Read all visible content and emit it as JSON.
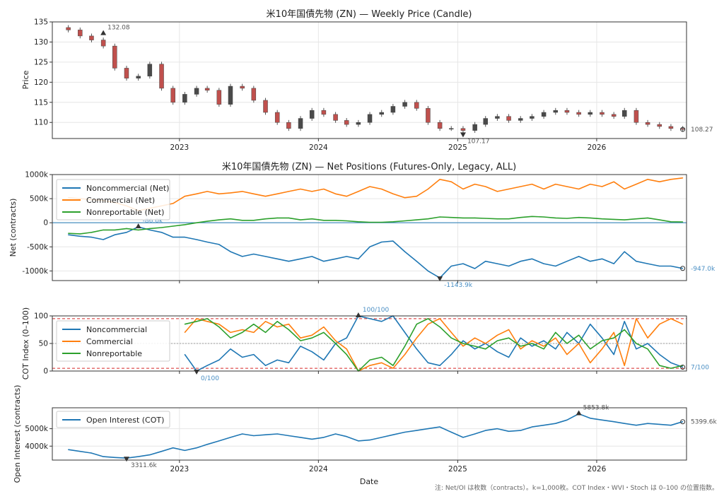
{
  "figure": {
    "footnote": "注: Net/OI は枚数（contracts）。k=1,000枚。COT Index・WVI・Stoch は 0–100 の位置指数。",
    "xlabel": "Date"
  },
  "chart_data": [
    {
      "type": "candlestick",
      "title": "米10年国債先物 (ZN) — Weekly Price (Candle)",
      "ylabel": "Price",
      "ylim": [
        106,
        135
      ],
      "yticks": [
        110,
        115,
        120,
        125,
        130,
        135
      ],
      "xticks": [
        "2023",
        "2024",
        "2025",
        "2026"
      ],
      "grid": true,
      "x": [
        "2022-03",
        "2022-04",
        "2022-05",
        "2022-06",
        "2022-07",
        "2022-08",
        "2022-09",
        "2022-10",
        "2022-11",
        "2022-12",
        "2023-01",
        "2023-02",
        "2023-03",
        "2023-04",
        "2023-05",
        "2023-06",
        "2023-07",
        "2023-08",
        "2023-09",
        "2023-10",
        "2023-11",
        "2023-12",
        "2024-01",
        "2024-02",
        "2024-03",
        "2024-04",
        "2024-05",
        "2024-06",
        "2024-07",
        "2024-08",
        "2024-09",
        "2024-10",
        "2024-11",
        "2024-12",
        "2025-01",
        "2025-02",
        "2025-03",
        "2025-04",
        "2025-05",
        "2025-06",
        "2025-07",
        "2025-08",
        "2025-09",
        "2025-10",
        "2025-11",
        "2025-12",
        "2026-01",
        "2026-02",
        "2026-03",
        "2026-04",
        "2026-05",
        "2026-06",
        "2026-07",
        "2026-08"
      ],
      "close": [
        133.0,
        131.5,
        130.5,
        129.0,
        123.5,
        121.0,
        121.5,
        124.5,
        118.5,
        115.0,
        117.0,
        118.5,
        118.0,
        114.5,
        119.0,
        118.5,
        115.5,
        112.5,
        110.0,
        108.5,
        111.0,
        113.0,
        112.0,
        110.5,
        109.5,
        110.0,
        112.0,
        112.5,
        114.0,
        115.0,
        113.5,
        110.0,
        108.5,
        108.5,
        108.0,
        109.5,
        111.0,
        111.5,
        110.5,
        111.0,
        111.5,
        112.5,
        113.0,
        112.5,
        112.0,
        112.5,
        112.0,
        111.5,
        113.0,
        110.0,
        109.5,
        109.0,
        108.5,
        108.27
      ],
      "annotations": [
        {
          "label": "132.08",
          "x": "2022-06",
          "y": 132.08,
          "kind": "max"
        },
        {
          "label": "107.17",
          "x": "2025-01",
          "y": 107.17,
          "kind": "min"
        },
        {
          "label": "108.27",
          "x": "2026-08",
          "y": 108.27,
          "kind": "last"
        }
      ]
    },
    {
      "type": "line",
      "title": "米10年国債先物 (ZN) — Net Positions (Futures-Only, Legacy, ALL)",
      "ylabel": "Net (contracts)",
      "ylim": [
        -1200,
        1000
      ],
      "yticks": [
        -1000,
        -500,
        0,
        500,
        1000
      ],
      "ytick_labels": [
        "-1000k",
        "-500k",
        "0",
        "500k",
        "1000k"
      ],
      "unit": "k",
      "grid": true,
      "legend": "top-left",
      "x": [
        "2022-03",
        "2022-04",
        "2022-05",
        "2022-06",
        "2022-07",
        "2022-08",
        "2022-09",
        "2022-10",
        "2022-11",
        "2022-12",
        "2023-01",
        "2023-02",
        "2023-03",
        "2023-04",
        "2023-05",
        "2023-06",
        "2023-07",
        "2023-08",
        "2023-09",
        "2023-10",
        "2023-11",
        "2023-12",
        "2024-01",
        "2024-02",
        "2024-03",
        "2024-04",
        "2024-05",
        "2024-06",
        "2024-07",
        "2024-08",
        "2024-09",
        "2024-10",
        "2024-11",
        "2024-12",
        "2025-01",
        "2025-02",
        "2025-03",
        "2025-04",
        "2025-05",
        "2025-06",
        "2025-07",
        "2025-08",
        "2025-09",
        "2025-10",
        "2025-11",
        "2025-12",
        "2026-01",
        "2026-02",
        "2026-03",
        "2026-04",
        "2026-05",
        "2026-06",
        "2026-07",
        "2026-08"
      ],
      "series": [
        {
          "name": "Noncommercial (Net)",
          "color": "#1f77b4",
          "values": [
            -250,
            -280,
            -300,
            -350,
            -250,
            -200,
            -86,
            -150,
            -200,
            -300,
            -300,
            -350,
            -400,
            -450,
            -600,
            -700,
            -650,
            -700,
            -750,
            -800,
            -750,
            -700,
            -800,
            -750,
            -700,
            -750,
            -500,
            -400,
            -380,
            -600,
            -800,
            -1000,
            -1144,
            -900,
            -850,
            -950,
            -800,
            -850,
            -900,
            -800,
            -750,
            -850,
            -900,
            -800,
            -700,
            -800,
            -750,
            -850,
            -600,
            -800,
            -850,
            -900,
            -900,
            -947
          ]
        },
        {
          "name": "Commercial (Net)",
          "color": "#ff7f0e",
          "values": [
            520,
            500,
            480,
            460,
            420,
            350,
            250,
            300,
            350,
            400,
            550,
            600,
            650,
            600,
            620,
            650,
            600,
            550,
            600,
            650,
            700,
            650,
            700,
            600,
            550,
            650,
            750,
            700,
            600,
            520,
            550,
            700,
            900,
            850,
            700,
            800,
            750,
            650,
            700,
            750,
            800,
            700,
            800,
            750,
            700,
            800,
            750,
            850,
            700,
            800,
            900,
            850,
            900,
            930
          ]
        },
        {
          "name": "Nonreportable (Net)",
          "color": "#2ca02c",
          "values": [
            -220,
            -230,
            -200,
            -150,
            -150,
            -120,
            -150,
            -120,
            -100,
            -70,
            -40,
            0,
            30,
            60,
            80,
            50,
            50,
            80,
            100,
            100,
            60,
            80,
            50,
            50,
            40,
            20,
            10,
            10,
            20,
            40,
            60,
            80,
            120,
            110,
            100,
            100,
            90,
            80,
            80,
            110,
            130,
            120,
            100,
            90,
            110,
            100,
            80,
            70,
            60,
            80,
            100,
            60,
            20,
            17
          ]
        }
      ],
      "annotations": [
        {
          "label": "-86.0k",
          "x": "2022-09",
          "y": -86.0,
          "kind": "max"
        },
        {
          "label": "-1143.9k",
          "x": "2024-11",
          "y": -1143.9,
          "kind": "min"
        },
        {
          "label": "-947.0k",
          "x": "2026-08",
          "y": -947.0,
          "kind": "last"
        }
      ]
    },
    {
      "type": "line",
      "title": "",
      "ylabel": "COT Index (0–100)",
      "ylim": [
        0,
        100
      ],
      "yticks": [
        0,
        50,
        100
      ],
      "reference_lines": [
        5,
        50,
        95
      ],
      "grid": true,
      "legend": "top-left",
      "x": [
        "2023-01",
        "2023-02",
        "2023-03",
        "2023-04",
        "2023-05",
        "2023-06",
        "2023-07",
        "2023-08",
        "2023-09",
        "2023-10",
        "2023-11",
        "2023-12",
        "2024-01",
        "2024-02",
        "2024-03",
        "2024-04",
        "2024-05",
        "2024-06",
        "2024-07",
        "2024-08",
        "2024-09",
        "2024-10",
        "2024-11",
        "2024-12",
        "2025-01",
        "2025-02",
        "2025-03",
        "2025-04",
        "2025-05",
        "2025-06",
        "2025-07",
        "2025-08",
        "2025-09",
        "2025-10",
        "2025-11",
        "2025-12",
        "2026-01",
        "2026-02",
        "2026-03",
        "2026-04",
        "2026-05",
        "2026-06",
        "2026-07",
        "2026-08"
      ],
      "series": [
        {
          "name": "Noncommercial",
          "color": "#1f77b4",
          "values": [
            30,
            0,
            10,
            20,
            40,
            25,
            30,
            10,
            20,
            15,
            45,
            35,
            20,
            50,
            60,
            100,
            95,
            90,
            100,
            70,
            40,
            15,
            10,
            30,
            55,
            40,
            50,
            35,
            25,
            60,
            45,
            55,
            40,
            70,
            50,
            85,
            60,
            30,
            90,
            40,
            50,
            30,
            15,
            7
          ]
        },
        {
          "name": "Commercial",
          "color": "#ff7f0e",
          "values": [
            70,
            95,
            90,
            85,
            70,
            75,
            70,
            90,
            80,
            85,
            60,
            65,
            80,
            55,
            40,
            0,
            10,
            15,
            5,
            30,
            60,
            85,
            95,
            70,
            45,
            60,
            50,
            65,
            75,
            40,
            55,
            45,
            60,
            30,
            50,
            15,
            40,
            70,
            10,
            95,
            60,
            85,
            95,
            85
          ]
        },
        {
          "name": "Nonreportable",
          "color": "#2ca02c",
          "values": [
            85,
            90,
            95,
            80,
            60,
            70,
            85,
            70,
            90,
            75,
            55,
            60,
            70,
            50,
            30,
            0,
            20,
            25,
            10,
            45,
            85,
            95,
            80,
            60,
            50,
            45,
            40,
            55,
            60,
            45,
            50,
            40,
            70,
            50,
            65,
            40,
            55,
            60,
            75,
            50,
            40,
            10,
            5,
            10
          ]
        }
      ],
      "annotations": [
        {
          "label": "100/100",
          "x": "2024-04",
          "y": 100,
          "kind": "max"
        },
        {
          "label": "0/100",
          "x": "2023-02",
          "y": 0,
          "kind": "min"
        },
        {
          "label": "7/100",
          "x": "2026-08",
          "y": 7,
          "kind": "last"
        }
      ]
    },
    {
      "type": "line",
      "title": "",
      "ylabel": "Open Interest (contracts)",
      "ylim": [
        3200,
        6200
      ],
      "yticks": [
        4000,
        5000
      ],
      "ytick_labels": [
        "4000k",
        "5000k"
      ],
      "unit": "k",
      "grid": true,
      "legend": "top-left",
      "x": [
        "2022-03",
        "2022-04",
        "2022-05",
        "2022-06",
        "2022-07",
        "2022-08",
        "2022-09",
        "2022-10",
        "2022-11",
        "2022-12",
        "2023-01",
        "2023-02",
        "2023-03",
        "2023-04",
        "2023-05",
        "2023-06",
        "2023-07",
        "2023-08",
        "2023-09",
        "2023-10",
        "2023-11",
        "2023-12",
        "2024-01",
        "2024-02",
        "2024-03",
        "2024-04",
        "2024-05",
        "2024-06",
        "2024-07",
        "2024-08",
        "2024-09",
        "2024-10",
        "2024-11",
        "2024-12",
        "2025-01",
        "2025-02",
        "2025-03",
        "2025-04",
        "2025-05",
        "2025-06",
        "2025-07",
        "2025-08",
        "2025-09",
        "2025-10",
        "2025-11",
        "2025-12",
        "2026-01",
        "2026-02",
        "2026-03",
        "2026-04",
        "2026-05",
        "2026-06",
        "2026-07",
        "2026-08"
      ],
      "series": [
        {
          "name": "Open Interest (COT)",
          "color": "#1f77b4",
          "values": [
            3800,
            3700,
            3600,
            3400,
            3350,
            3311.6,
            3400,
            3500,
            3700,
            3900,
            3750,
            3900,
            4100,
            4300,
            4500,
            4700,
            4600,
            4650,
            4700,
            4600,
            4500,
            4400,
            4500,
            4700,
            4550,
            4300,
            4350,
            4500,
            4650,
            4800,
            4900,
            5000,
            5100,
            4800,
            4500,
            4700,
            4900,
            5000,
            4850,
            4900,
            5100,
            5200,
            5300,
            5500,
            5853.8,
            5600,
            5500,
            5400,
            5300,
            5200,
            5300,
            5250,
            5200,
            5399.6
          ]
        }
      ],
      "annotations": [
        {
          "label": "5853.8k",
          "x": "2025-11",
          "y": 5853.8,
          "kind": "max"
        },
        {
          "label": "3311.6k",
          "x": "2022-08",
          "y": 3311.6,
          "kind": "min"
        },
        {
          "label": "5399.6k",
          "x": "2026-08",
          "y": 5399.6,
          "kind": "last"
        }
      ]
    }
  ],
  "colors": {
    "up": "#4a4a4a",
    "down": "#c0504d",
    "grid": "#e6e6e6",
    "axis": "#333333",
    "reference": "#d62728"
  }
}
